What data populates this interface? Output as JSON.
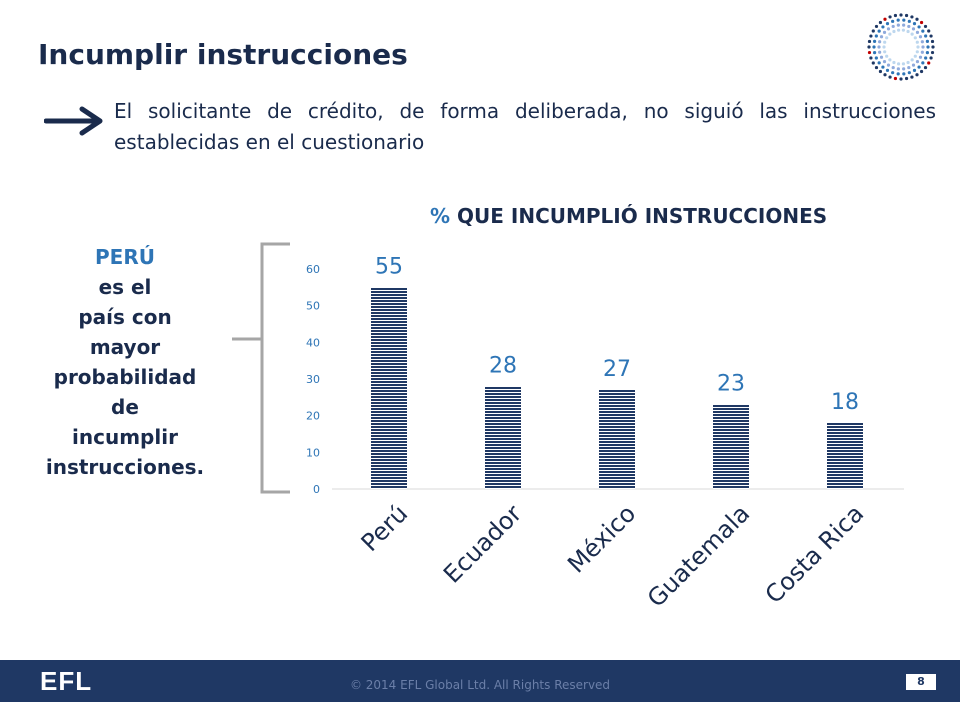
{
  "slide": {
    "title": "Incumplir instrucciones",
    "bullet": "El solicitante de crédito, de forma deliberada, no siguió las instrucciones establecidas en el cuestionario"
  },
  "callout": {
    "highlight": "PERÚ",
    "lines": [
      "es el",
      "país con",
      "mayor",
      "probabilidad",
      "de",
      "incumplir",
      "instrucciones."
    ]
  },
  "chart_data": {
    "type": "bar",
    "title_prefix": "%",
    "title": "QUE INCUMPLIÓ INSTRUCCIONES",
    "categories": [
      "Perú",
      "Ecuador",
      "México",
      "Guatemala",
      "Costa Rica"
    ],
    "values": [
      55,
      28,
      27,
      23,
      18
    ],
    "data_labels": [
      "55",
      "28",
      "27",
      "23",
      "18"
    ],
    "ylim": [
      0,
      60
    ],
    "yticks": [
      "0",
      "10",
      "20",
      "30",
      "40",
      "50",
      "60"
    ],
    "grid": false,
    "bar_color": "#1f3864"
  },
  "footer": {
    "logo": "EFL",
    "copyright": "© 2014 EFL Global Ltd. All Rights Reserved",
    "page_number": "8"
  },
  "colors": {
    "navy": "#1a2b4c",
    "accent": "#2e75b6",
    "footer_bg": "#1f3864"
  },
  "icons": [
    "efl-dotted-circle-logo-icon",
    "right-arrow-icon",
    "bracket-icon"
  ]
}
